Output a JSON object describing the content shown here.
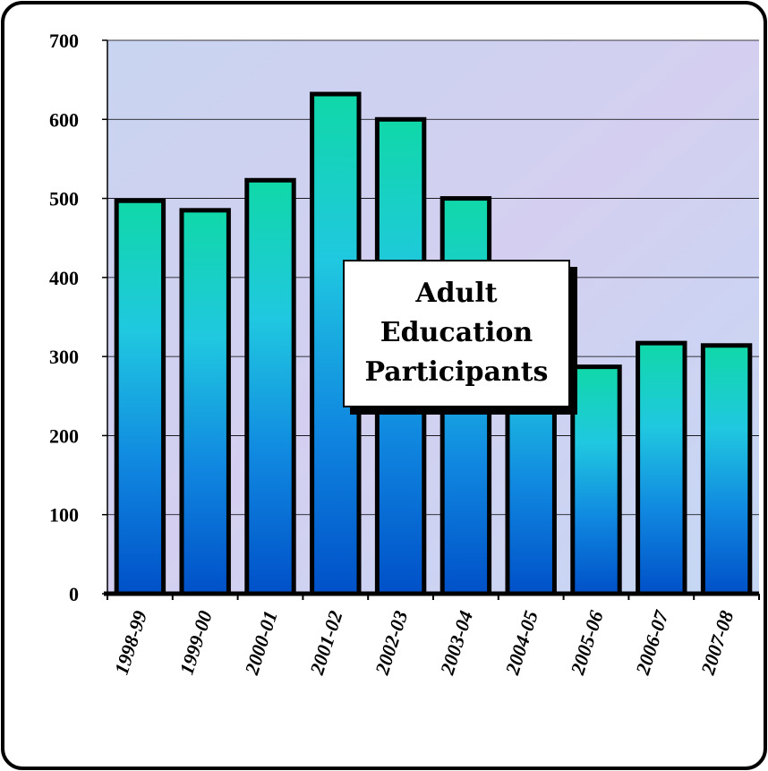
{
  "chart_data": {
    "type": "bar",
    "title": "Adult Education Participants",
    "categories": [
      "1998-99",
      "1999-00",
      "2000-01",
      "2001-02",
      "2002-03",
      "2003-04",
      "2004-05",
      "2005-06",
      "2006-07",
      "2007-08"
    ],
    "values": [
      497,
      485,
      523,
      632,
      600,
      500,
      413,
      287,
      317,
      314
    ],
    "color": [
      "#10d8a8",
      "#20c8e0",
      "#1088e0",
      "#0050c8"
    ],
    "ylim": [
      0,
      700
    ],
    "yticks": [
      0,
      100,
      200,
      300,
      400,
      500,
      600,
      700
    ],
    "grid": true
  }
}
